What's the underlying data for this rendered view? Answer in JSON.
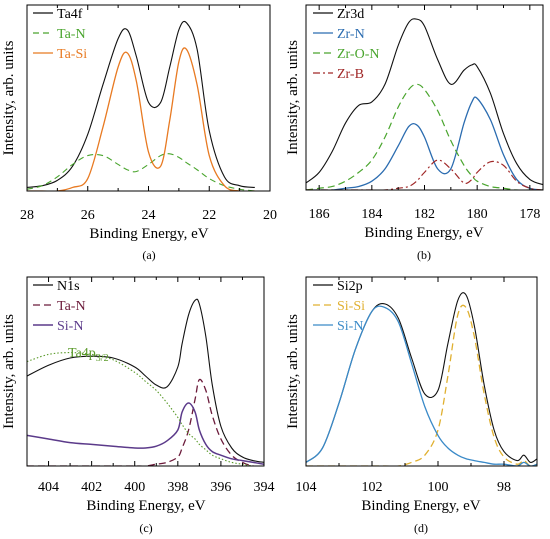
{
  "colors": {
    "total": "#111111",
    "taN": "#4aa52e",
    "taSi": "#e87a22",
    "zrN": "#2b6cb0",
    "zrON": "#4aa52e",
    "zrB": "#a02828",
    "n_taN": "#6b1a3a",
    "n_siN": "#5b3a8a",
    "n_ta4p": "#5a9a2a",
    "si_si": "#e0b030",
    "si_n": "#3a8ac8"
  },
  "chart_data": [
    {
      "id": "a",
      "type": "line",
      "caption": "(a)",
      "xlabel": "Binding Energy, eV",
      "ylabel": "Intensity, arb. units",
      "xlim": [
        28,
        20
      ],
      "xticks": [
        "28",
        "26",
        "24",
        "22",
        "20"
      ],
      "x": [
        28.0,
        27.5,
        27.0,
        26.5,
        26.0,
        25.5,
        25.0,
        24.7,
        24.4,
        24.0,
        23.6,
        23.3,
        23.0,
        22.75,
        22.4,
        22.0,
        21.5,
        21.0,
        20.5
      ],
      "series": [
        {
          "name": "Ta4f",
          "values": [
            0.02,
            0.03,
            0.06,
            0.14,
            0.32,
            0.6,
            0.86,
            0.91,
            0.76,
            0.5,
            0.5,
            0.7,
            0.91,
            0.95,
            0.8,
            0.34,
            0.08,
            0.03,
            0.02
          ]
        },
        {
          "name": "Ta-N",
          "values": [
            0.01,
            0.03,
            0.08,
            0.15,
            0.2,
            0.2,
            0.15,
            0.12,
            0.11,
            0.15,
            0.2,
            0.21,
            0.19,
            0.16,
            0.12,
            0.07,
            0.03,
            0.01,
            0.0
          ]
        },
        {
          "name": "Ta-Si",
          "values": [
            0.0,
            0.0,
            0.0,
            0.02,
            0.07,
            0.36,
            0.7,
            0.78,
            0.62,
            0.22,
            0.14,
            0.4,
            0.73,
            0.8,
            0.6,
            0.2,
            0.03,
            0.0,
            0.0
          ]
        }
      ]
    },
    {
      "id": "b",
      "type": "line",
      "caption": "(b)",
      "xlabel": "Binding Energy, eV",
      "ylabel": "Intensity, arb. units",
      "xlim": [
        186.5,
        177.5
      ],
      "xticks": [
        "186",
        "184",
        "182",
        "180",
        "178"
      ],
      "x": [
        186.5,
        186.0,
        185.5,
        185.0,
        184.5,
        184.0,
        183.5,
        183.0,
        182.6,
        182.3,
        182.0,
        181.5,
        181.0,
        180.5,
        180.2,
        180.0,
        179.5,
        179.0,
        178.5,
        178.0,
        177.5
      ],
      "series": [
        {
          "name": "Zr3d",
          "values": [
            0.04,
            0.1,
            0.22,
            0.38,
            0.48,
            0.5,
            0.6,
            0.82,
            0.95,
            0.97,
            0.93,
            0.74,
            0.6,
            0.68,
            0.71,
            0.7,
            0.55,
            0.32,
            0.15,
            0.06,
            0.03
          ]
        },
        {
          "name": "Zr-N",
          "values": [
            0.0,
            0.0,
            0.0,
            0.01,
            0.02,
            0.05,
            0.12,
            0.25,
            0.36,
            0.37,
            0.3,
            0.12,
            0.12,
            0.38,
            0.5,
            0.52,
            0.4,
            0.2,
            0.06,
            0.01,
            0.0
          ]
        },
        {
          "name": "Zr-O-N",
          "values": [
            0.0,
            0.01,
            0.02,
            0.05,
            0.1,
            0.17,
            0.3,
            0.47,
            0.57,
            0.6,
            0.57,
            0.45,
            0.28,
            0.14,
            0.08,
            0.05,
            0.02,
            0.01,
            0.0,
            0.0,
            0.0
          ]
        },
        {
          "name": "Zr-B",
          "values": [
            0.0,
            0.0,
            0.0,
            0.0,
            0.0,
            0.0,
            0.0,
            0.01,
            0.02,
            0.05,
            0.1,
            0.17,
            0.12,
            0.04,
            0.06,
            0.1,
            0.16,
            0.14,
            0.05,
            0.01,
            0.0
          ]
        }
      ]
    },
    {
      "id": "c",
      "type": "line",
      "caption": "(c)",
      "xlabel": "Binding Energy, eV",
      "ylabel": "Intensity, arb. units",
      "xlim": [
        405,
        394
      ],
      "xticks": [
        "404",
        "402",
        "400",
        "398",
        "396",
        "394"
      ],
      "x": [
        405,
        404,
        403,
        402,
        401,
        400,
        399.5,
        399,
        398.5,
        398,
        397.8,
        397.5,
        397.2,
        397.0,
        396.7,
        396.4,
        396,
        395.5,
        395,
        394.5,
        394
      ],
      "annotation": "Ta4p",
      "annotation_sub": "3/2",
      "series": [
        {
          "name": "N1s",
          "values": [
            0.5,
            0.56,
            0.6,
            0.61,
            0.6,
            0.55,
            0.5,
            0.45,
            0.44,
            0.55,
            0.68,
            0.84,
            0.92,
            0.9,
            0.72,
            0.45,
            0.22,
            0.1,
            0.05,
            0.03,
            0.02
          ]
        },
        {
          "name": "Ta-N",
          "values": [
            0.0,
            0.0,
            0.0,
            0.0,
            0.0,
            0.0,
            0.0,
            0.01,
            0.02,
            0.05,
            0.1,
            0.2,
            0.37,
            0.48,
            0.42,
            0.28,
            0.15,
            0.06,
            0.02,
            0.0,
            0.0
          ]
        },
        {
          "name": "Si-N",
          "values": [
            0.17,
            0.15,
            0.13,
            0.12,
            0.11,
            0.1,
            0.1,
            0.11,
            0.14,
            0.2,
            0.3,
            0.35,
            0.3,
            0.2,
            0.12,
            0.08,
            0.06,
            0.04,
            0.03,
            0.02,
            0.01
          ]
        },
        {
          "name": "Ta4p3/2",
          "values": [
            0.58,
            0.62,
            0.63,
            0.62,
            0.59,
            0.52,
            0.47,
            0.42,
            0.35,
            0.27,
            0.23,
            0.18,
            0.15,
            0.12,
            0.09,
            0.06,
            0.04,
            0.02,
            0.01,
            0.0,
            0.0
          ]
        }
      ]
    },
    {
      "id": "d",
      "type": "line",
      "caption": "(d)",
      "xlabel": "Binding Energy, eV",
      "ylabel": "Intensity, arb. units",
      "xlim": [
        104,
        97
      ],
      "xticks": [
        "104",
        "102",
        "100",
        "98"
      ],
      "x": [
        104,
        103.5,
        103,
        102.5,
        102,
        101.6,
        101.2,
        100.8,
        100.4,
        100.0,
        99.7,
        99.4,
        99.15,
        98.9,
        98.6,
        98.3,
        98.0,
        97.6,
        97.4,
        97.2,
        97.0
      ],
      "series": [
        {
          "name": "Si2p",
          "values": [
            0.02,
            0.1,
            0.35,
            0.65,
            0.86,
            0.9,
            0.82,
            0.6,
            0.4,
            0.42,
            0.68,
            0.92,
            0.95,
            0.78,
            0.45,
            0.2,
            0.08,
            0.03,
            0.06,
            0.02,
            0.04
          ]
        },
        {
          "name": "Si-Si",
          "values": [
            0.0,
            0.0,
            0.0,
            0.0,
            0.0,
            0.0,
            0.0,
            0.02,
            0.06,
            0.2,
            0.5,
            0.84,
            0.88,
            0.72,
            0.4,
            0.16,
            0.05,
            0.01,
            0.03,
            0.0,
            0.01
          ]
        },
        {
          "name": "Si-N",
          "values": [
            0.02,
            0.1,
            0.35,
            0.65,
            0.86,
            0.88,
            0.8,
            0.57,
            0.33,
            0.17,
            0.1,
            0.06,
            0.04,
            0.03,
            0.02,
            0.01,
            0.01,
            0.0,
            0.02,
            0.0,
            0.01
          ]
        }
      ]
    }
  ]
}
